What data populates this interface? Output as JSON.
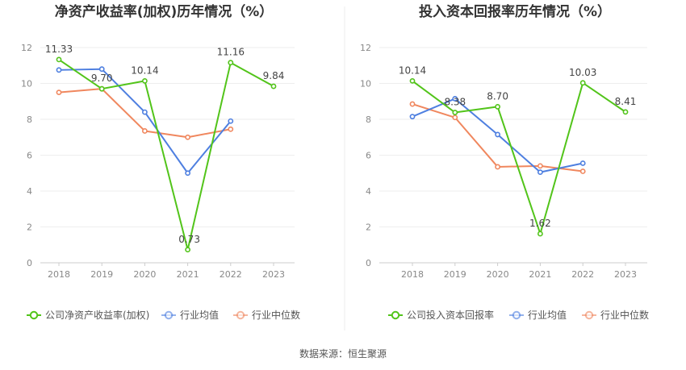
{
  "source": "数据来源：恒生聚源",
  "chart_data": [
    {
      "type": "line",
      "title": "净资产收益率(加权)历年情况（%）",
      "categories": [
        "2018",
        "2019",
        "2020",
        "2021",
        "2022",
        "2023"
      ],
      "ylim": [
        0,
        12
      ],
      "yticks": [
        0,
        2,
        4,
        6,
        8,
        10,
        12
      ],
      "series": [
        {
          "name": "公司净资产收益率(加权)",
          "color": "#52c41a",
          "values": [
            11.33,
            9.7,
            10.14,
            0.73,
            11.16,
            9.84
          ],
          "labels": [
            "11.33",
            "9.70",
            "10.14",
            "0.73",
            "11.16",
            "9.84"
          ]
        },
        {
          "name": "行业均值",
          "color": "#4e7fe0",
          "values": [
            10.75,
            10.8,
            8.4,
            5.0,
            7.9,
            null
          ]
        },
        {
          "name": "行业中位数",
          "color": "#f0875e",
          "values": [
            9.5,
            9.7,
            7.35,
            7.0,
            7.45,
            null
          ]
        }
      ]
    },
    {
      "type": "line",
      "title": "投入资本回报率历年情况（%）",
      "categories": [
        "2018",
        "2019",
        "2020",
        "2021",
        "2022",
        "2023"
      ],
      "ylim": [
        0,
        12
      ],
      "yticks": [
        0,
        2,
        4,
        6,
        8,
        10,
        12
      ],
      "series": [
        {
          "name": "公司投入资本回报率",
          "color": "#52c41a",
          "values": [
            10.14,
            8.38,
            8.7,
            1.62,
            10.03,
            8.41
          ],
          "labels": [
            "10.14",
            "8.38",
            "8.70",
            "1.62",
            "10.03",
            "8.41"
          ]
        },
        {
          "name": "行业均值",
          "color": "#4e7fe0",
          "values": [
            8.15,
            9.15,
            7.15,
            5.05,
            5.55,
            null
          ]
        },
        {
          "name": "行业中位数",
          "color": "#f0875e",
          "values": [
            8.85,
            8.1,
            5.35,
            5.4,
            5.1,
            null
          ]
        }
      ]
    }
  ]
}
